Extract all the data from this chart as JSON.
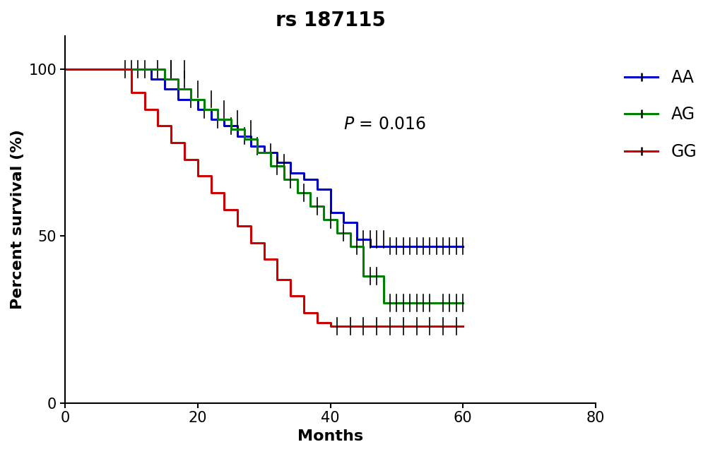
{
  "title": "rs 187115",
  "xlabel": "Months",
  "ylabel": "Percent survival (%)",
  "xlim": [
    0,
    80
  ],
  "ylim": [
    0,
    110
  ],
  "yticks": [
    0,
    50,
    100
  ],
  "xticks": [
    0,
    20,
    40,
    60,
    80
  ],
  "pvalue_x": 42,
  "pvalue_y": 82,
  "background_color": "#ffffff",
  "legend_entries": [
    "AA",
    "AG",
    "GG"
  ],
  "legend_colors": [
    "#0000cc",
    "#008000",
    "#cc0000"
  ],
  "title_fontsize": 20,
  "label_fontsize": 16,
  "tick_fontsize": 15,
  "legend_fontsize": 17,
  "pvalue_fontsize": 17,
  "linewidth": 2.2,
  "km_data": {
    "AA": {
      "color": "#0000cc",
      "step_times": [
        0,
        8,
        13,
        15,
        17,
        20,
        22,
        24,
        26,
        28,
        30,
        32,
        34,
        36,
        38,
        40,
        42,
        44,
        46,
        60
      ],
      "step_surv": [
        100,
        100,
        97,
        94,
        91,
        88,
        85,
        83,
        80,
        77,
        75,
        72,
        69,
        67,
        64,
        57,
        54,
        49,
        47,
        47
      ],
      "censor_times": [
        9,
        10,
        11,
        12,
        14,
        16,
        18,
        19,
        21,
        23,
        25,
        27,
        29,
        31,
        33,
        45,
        46,
        47,
        48,
        49,
        50,
        51,
        52,
        53,
        54,
        55,
        56,
        57,
        58,
        59,
        60
      ],
      "censor_survs": [
        100,
        100,
        100,
        100,
        100,
        100,
        100,
        91,
        88,
        85,
        83,
        80,
        77,
        75,
        72,
        49,
        49,
        49,
        49,
        47,
        47,
        47,
        47,
        47,
        47,
        47,
        47,
        47,
        47,
        47,
        47
      ]
    },
    "AG": {
      "color": "#008000",
      "step_times": [
        0,
        12,
        15,
        17,
        19,
        21,
        23,
        25,
        27,
        29,
        31,
        33,
        35,
        37,
        39,
        41,
        43,
        45,
        48,
        60
      ],
      "step_surv": [
        100,
        100,
        97,
        94,
        91,
        88,
        85,
        82,
        79,
        75,
        71,
        67,
        63,
        59,
        55,
        51,
        47,
        38,
        30,
        30
      ],
      "censor_times": [
        16,
        18,
        20,
        22,
        24,
        26,
        28,
        32,
        34,
        36,
        38,
        40,
        42,
        44,
        46,
        47,
        49,
        50,
        51,
        52,
        53,
        54,
        55,
        57,
        58,
        59,
        60
      ],
      "censor_survs": [
        100,
        97,
        94,
        91,
        88,
        85,
        82,
        71,
        67,
        63,
        59,
        55,
        51,
        47,
        38,
        38,
        30,
        30,
        30,
        30,
        30,
        30,
        30,
        30,
        30,
        30,
        30
      ]
    },
    "GG": {
      "color": "#cc0000",
      "step_times": [
        0,
        10,
        12,
        14,
        16,
        18,
        20,
        22,
        24,
        26,
        28,
        30,
        32,
        34,
        36,
        38,
        40,
        43,
        60
      ],
      "step_surv": [
        100,
        93,
        88,
        83,
        78,
        73,
        68,
        63,
        58,
        53,
        48,
        43,
        37,
        32,
        27,
        24,
        23,
        23,
        23
      ],
      "censor_times": [
        41,
        43,
        45,
        47,
        49,
        51,
        53,
        55,
        57,
        59
      ],
      "censor_survs": [
        23,
        23,
        23,
        23,
        23,
        23,
        23,
        23,
        23,
        23
      ]
    }
  }
}
